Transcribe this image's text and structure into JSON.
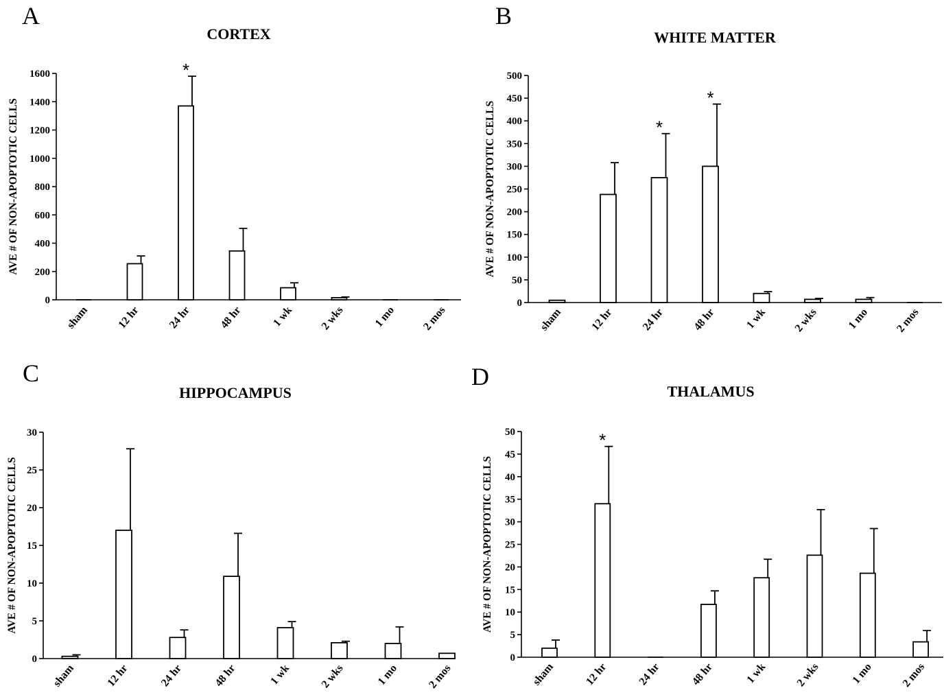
{
  "chart_data": [
    {
      "type": "bar",
      "panel": "A",
      "title": "CORTEX",
      "ylabel": "AVE # OF NON-APOPTOTIC  CELLS",
      "categories": [
        "sham",
        "12 hr",
        "24 hr",
        "48 hr",
        "1 wk",
        "2 wks",
        "1 mo",
        "2 mos"
      ],
      "values": [
        0,
        255,
        1370,
        345,
        85,
        15,
        0,
        0
      ],
      "errors": [
        0,
        55,
        210,
        160,
        35,
        5,
        0,
        0
      ],
      "significant": [
        false,
        false,
        true,
        false,
        false,
        false,
        false,
        false
      ],
      "significance_marker": "*",
      "ylim": [
        0,
        1600
      ],
      "yticks": [
        0,
        200,
        400,
        600,
        800,
        1000,
        1200,
        1400,
        1600
      ]
    },
    {
      "type": "bar",
      "panel": "B",
      "title": "WHITE MATTER",
      "ylabel": "AVE # OF NON-APOPTOTIC  CELLS",
      "categories": [
        "sham",
        "12 hr",
        "24 hr",
        "48 hr",
        "1 wk",
        "2 wks",
        "1 mo",
        "2 mos"
      ],
      "values": [
        5,
        238,
        275,
        300,
        20,
        7,
        7,
        0
      ],
      "errors": [
        0,
        70,
        97,
        137,
        4,
        2,
        4,
        0
      ],
      "significant": [
        false,
        false,
        true,
        true,
        false,
        false,
        false,
        false
      ],
      "significance_marker": "*",
      "ylim": [
        0,
        500
      ],
      "yticks": [
        0,
        50,
        100,
        150,
        200,
        250,
        300,
        350,
        400,
        450,
        500
      ]
    },
    {
      "type": "bar",
      "panel": "C",
      "title": "HIPPOCAMPUS",
      "ylabel": "AVE # OF NON-APOPTOTIC  CELLS",
      "categories": [
        "sham",
        "12 hr",
        "24 hr",
        "48 hr",
        "1 wk",
        "2 wks",
        "1 mo",
        "2 mos"
      ],
      "values": [
        0.3,
        17,
        2.8,
        10.9,
        4.1,
        2.1,
        2.0,
        0.7
      ],
      "errors": [
        0.2,
        10.8,
        1.0,
        5.7,
        0.8,
        0.2,
        2.2,
        0
      ],
      "significant": [
        false,
        false,
        false,
        false,
        false,
        false,
        false,
        false
      ],
      "significance_marker": "*",
      "ylim": [
        0,
        30
      ],
      "yticks": [
        0,
        5,
        10,
        15,
        20,
        25,
        30
      ]
    },
    {
      "type": "bar",
      "panel": "D",
      "title": "THALAMUS",
      "ylabel": "AVE # OF NON-APOPTOTIC  CELLS",
      "categories": [
        "sham",
        "12 hr",
        "24 hr",
        "48 hr",
        "1 wk",
        "2 wks",
        "1 mo",
        "2 mos"
      ],
      "values": [
        2,
        34,
        0,
        11.7,
        17.6,
        22.6,
        18.6,
        3.4
      ],
      "errors": [
        1.8,
        12.7,
        0,
        3.0,
        4.1,
        10.1,
        9.9,
        2.5
      ],
      "significant": [
        false,
        true,
        false,
        false,
        false,
        false,
        false,
        false
      ],
      "significance_marker": "*",
      "ylim": [
        0,
        50
      ],
      "yticks": [
        0,
        5,
        10,
        15,
        20,
        25,
        30,
        35,
        40,
        45,
        50
      ]
    }
  ]
}
